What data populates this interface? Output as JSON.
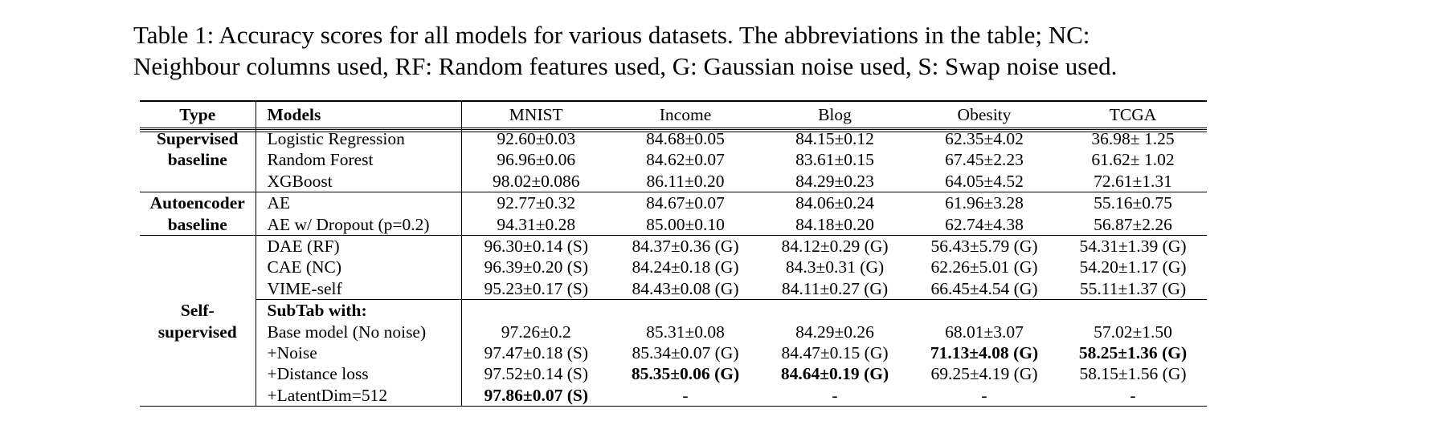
{
  "caption": {
    "line1": "Table 1:  Accuracy scores for all models for various datasets.  The abbreviations in the table; NC:",
    "line2": "Neighbour columns used, RF: Random features used, G: Gaussian noise used, S: Swap noise used."
  },
  "table": {
    "headers": [
      "Type",
      "Models",
      "MNIST",
      "Income",
      "Blog",
      "Obesity",
      "TCGA"
    ],
    "groups": [
      {
        "type_line1": "Supervised",
        "type_line2": "baseline",
        "rows": [
          {
            "model": "Logistic Regression",
            "cells": [
              [
                "92.60±0.03",
                ""
              ],
              [
                "84.68±0.05",
                ""
              ],
              [
                "84.15±0.12",
                ""
              ],
              [
                "62.35±4.02",
                ""
              ],
              [
                "36.98± 1.25",
                ""
              ]
            ]
          },
          {
            "model": "Random Forest",
            "cells": [
              [
                "96.96±0.06",
                ""
              ],
              [
                "84.62±0.07",
                ""
              ],
              [
                "83.61±0.15",
                ""
              ],
              [
                "67.45±2.23",
                ""
              ],
              [
                "61.62± 1.02",
                ""
              ]
            ]
          },
          {
            "model": "XGBoost",
            "cells": [
              [
                "98.02±0.086",
                ""
              ],
              [
                "86.11±0.20",
                ""
              ],
              [
                "84.29±0.23",
                ""
              ],
              [
                "64.05±4.52",
                ""
              ],
              [
                "72.61±1.31",
                ""
              ]
            ]
          }
        ]
      },
      {
        "type_line1": "Autoencoder",
        "type_line2": "baseline",
        "rows": [
          {
            "model": "AE",
            "cells": [
              [
                "92.77±0.32",
                ""
              ],
              [
                "84.67±0.07",
                ""
              ],
              [
                "84.06±0.24",
                ""
              ],
              [
                "61.96±3.28",
                ""
              ],
              [
                "55.16±0.75",
                ""
              ]
            ]
          },
          {
            "model": "AE w/ Dropout (p=0.2)",
            "cells": [
              [
                "94.31±0.28",
                ""
              ],
              [
                "85.00±0.10",
                ""
              ],
              [
                "84.18±0.20",
                ""
              ],
              [
                "62.74±4.38",
                ""
              ],
              [
                "56.87±2.26",
                ""
              ]
            ]
          }
        ]
      },
      {
        "type_line1": "Self-",
        "type_line2": "supervised",
        "rows_a": [
          {
            "model": "DAE (RF)",
            "cells": [
              [
                "96.30±0.14",
                "(S)"
              ],
              [
                "84.37±0.36",
                "(G)"
              ],
              [
                "84.12±0.29",
                "(G)"
              ],
              [
                "56.43±5.79",
                "(G)"
              ],
              [
                "54.31±1.39",
                "(G)"
              ]
            ]
          },
          {
            "model": "CAE (NC)",
            "cells": [
              [
                "96.39±0.20",
                "(S)"
              ],
              [
                "84.24±0.18",
                "(G)"
              ],
              [
                "84.3±0.31",
                "(G)"
              ],
              [
                "62.26±5.01",
                "(G)"
              ],
              [
                "54.20±1.17",
                "(G)"
              ]
            ]
          },
          {
            "model": "VIME-self",
            "cells": [
              [
                "95.23±0.17",
                "(S)"
              ],
              [
                "84.43±0.08",
                "(G)"
              ],
              [
                "84.11±0.27",
                "(G)"
              ],
              [
                "66.45±4.54",
                "(G)"
              ],
              [
                "55.11±1.37",
                "(G)"
              ]
            ]
          }
        ],
        "subtab_label": "SubTab with:",
        "rows_b": [
          {
            "model": "Base model (No noise)",
            "cells": [
              [
                "97.26±0.2",
                ""
              ],
              [
                "85.31±0.08",
                ""
              ],
              [
                "84.29±0.26",
                ""
              ],
              [
                "68.01±3.07",
                ""
              ],
              [
                "57.02±1.50",
                ""
              ]
            ]
          },
          {
            "model": "+Noise",
            "cells": [
              [
                "97.47±0.18",
                "(S)"
              ],
              [
                "85.34±0.07",
                "(G)"
              ],
              [
                "84.47±0.15",
                "(G)"
              ],
              [
                "71.13±4.08",
                "(G)"
              ],
              [
                "58.25±1.36",
                "(G)"
              ]
            ]
          },
          {
            "model": "+Distance loss",
            "cells": [
              [
                "97.52±0.14",
                "(S)"
              ],
              [
                "85.35±0.06",
                "(G)"
              ],
              [
                "84.64±0.19",
                "(G)"
              ],
              [
                "69.25±4.19",
                "(G)"
              ],
              [
                "58.15±1.56",
                "(G)"
              ]
            ]
          },
          {
            "model": "+LatentDim=512",
            "cells": [
              [
                "97.86±0.07",
                "(S)"
              ],
              [
                "-",
                ""
              ],
              [
                "-",
                ""
              ],
              [
                "-",
                ""
              ],
              [
                "-",
                ""
              ]
            ]
          }
        ]
      }
    ]
  }
}
